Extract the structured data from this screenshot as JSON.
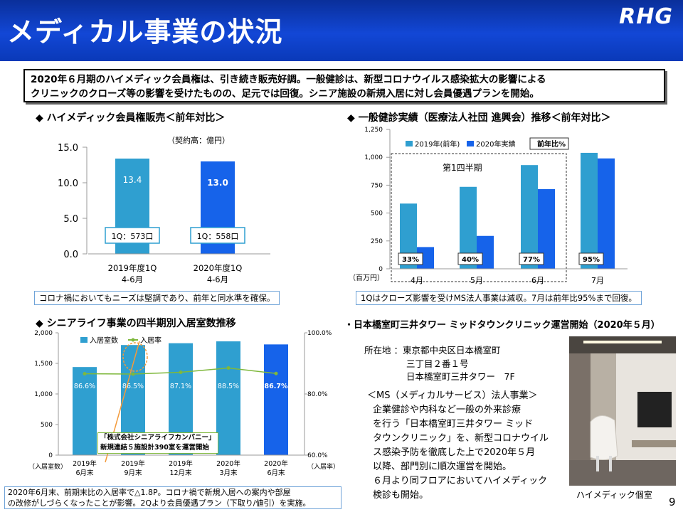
{
  "header": {
    "title": "メディカル事業の状況",
    "logo": "RHG"
  },
  "summary": {
    "line1": "2020年６月期のハイメディック会員権は、引き続き販売好調。一般健診は、新型コロナウイルス感染拡大の影響による",
    "line2": "クリニックのクローズ等の影響を受けたものの、足元では回復。シニア施設の新規入居に対し会員優遇プランを開始。"
  },
  "section1": {
    "title": "◆ ハイメディック会員権販売＜前年対比＞",
    "note": "コロナ禍においてもニーズは堅調であり、前年と同水準を確保。",
    "unit": "（契約高：億円）",
    "chart_data": {
      "type": "bar",
      "categories": [
        "2019年度1Q\n4-6月",
        "2020年度1Q\n4-6月"
      ],
      "values": [
        13.4,
        13.0
      ],
      "value_labels": [
        "13.4",
        "13.0"
      ],
      "yticks": [
        "15.0",
        "10.0",
        "5.0",
        "0.0"
      ],
      "ylim": [
        0,
        15
      ],
      "colors": [
        "#2f9fd0",
        "#1663ea"
      ],
      "box_labels": [
        "1Q：573口",
        "1Q：558口"
      ]
    }
  },
  "section2": {
    "title": "◆ 一般健診実績（医療法人社団 進興会）推移＜前年対比＞",
    "note": "1Qはクローズ影響を受けMS法人事業は減収。7月は前年比95%まで回復。",
    "unit": "（百万円）",
    "quarter_label": "第1四半期",
    "legend": [
      "2019年(前年)",
      "2020年実績",
      "前年比%"
    ],
    "chart_data": {
      "type": "bar",
      "categories": [
        "4月",
        "5月",
        "6月",
        "7月"
      ],
      "series": [
        {
          "name": "2019年(前年)",
          "values": [
            585,
            735,
            930,
            1040
          ],
          "color": "#2f9fd0"
        },
        {
          "name": "2020年実績",
          "values": [
            195,
            295,
            715,
            990
          ],
          "color": "#1663ea"
        }
      ],
      "ratios": [
        "33%",
        "40%",
        "77%",
        "95%"
      ],
      "yticks": [
        "1,250",
        "1,000",
        "750",
        "500",
        "250",
        "0"
      ],
      "ylim": [
        0,
        1250
      ]
    }
  },
  "section3": {
    "title": "◆ シニアライフ事業の四半期別入居室数推移",
    "legend": [
      "入居室数",
      "入居率"
    ],
    "left_unit": "（入居室数）",
    "right_unit": "（入居率）",
    "annotation_line1": "「株式会社シニアライフカンパニー」",
    "annotation_line2": "新規連結５施設計390室を運営開始",
    "note_line1": "2020年6月末、前期末比の入居率で△1.8P。コロナ禍で新規入居への案内や部屋",
    "note_line2": "の改修がしづらくなったことが影響。2Qより会員優遇プラン（下取り/値引）を実施。",
    "chart_data": {
      "type": "bar",
      "categories": [
        "2019年\n6月末",
        "2019年\n9月末",
        "2019年\n12月末",
        "2020年\n3月末",
        "2020年\n6月末"
      ],
      "series": [
        {
          "name": "入居室数",
          "values": [
            1440,
            1800,
            1830,
            1860,
            1810
          ]
        },
        {
          "name": "入居率",
          "values": [
            86.6,
            86.5,
            87.1,
            88.5,
            86.7
          ]
        }
      ],
      "rate_labels": [
        "86.6%",
        "86.5%",
        "87.1%",
        "88.5%",
        "86.7%"
      ],
      "yticks": [
        "2,000",
        "1,500",
        "1,000",
        "500",
        "0"
      ],
      "y2ticks": [
        "100.0%",
        "80.0%",
        "60.0%"
      ],
      "ylim": [
        0,
        2000
      ],
      "y2lim": [
        60,
        100
      ]
    }
  },
  "section4": {
    "title": "・日本橋室町三井タワー ミッドタウンクリニック運営開始（2020年５月）",
    "address_label": "所在地",
    "address": [
      "：東京都中央区日本橋室町",
      "三丁目２番１号",
      "日本橋室町三井タワー　7F"
    ],
    "ms_lines": [
      "＜MS（メディカルサービス）法人事業＞",
      "企業健診や内科など一般の外来診療",
      "を行う「日本橋室町三井タワー ミッド",
      "タウンクリニック」を、新型コロナウイル",
      "ス感染予防を徹底した上で2020年５月",
      "以降、部門別に順次運営を開始。",
      "６月より同フロアにおいてハイメディック",
      "検診も開始。"
    ],
    "photo_caption": "ハイメディック個室"
  },
  "page_number": "9"
}
